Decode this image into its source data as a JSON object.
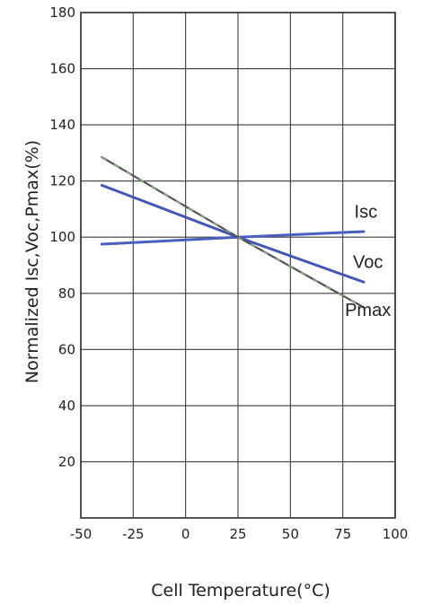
{
  "chart_data": {
    "type": "line",
    "xlabel": "Cell Temperature(°C)",
    "ylabel": "Normalized Isc,Voc,Pmax(%)",
    "xlim": [
      -50,
      100
    ],
    "ylim": [
      0,
      180
    ],
    "x_ticks": [
      "-50",
      "-25",
      "0",
      "25",
      "50",
      "75",
      "100"
    ],
    "y_ticks": [
      "20",
      "40",
      "60",
      "80",
      "100",
      "120",
      "140",
      "160",
      "180"
    ],
    "grid": true,
    "series": [
      {
        "name": "Isc",
        "color": "#4a5fc0",
        "x": [
          -40,
          25,
          85
        ],
        "y": [
          97.5,
          100,
          102
        ]
      },
      {
        "name": "Voc",
        "color": "#4455b5",
        "x": [
          -40,
          25,
          85
        ],
        "y": [
          118.5,
          100,
          84
        ]
      },
      {
        "name": "Pmax",
        "color": "#555555",
        "x": [
          -40,
          25,
          85
        ],
        "y": [
          128.5,
          100,
          75
        ]
      }
    ]
  }
}
